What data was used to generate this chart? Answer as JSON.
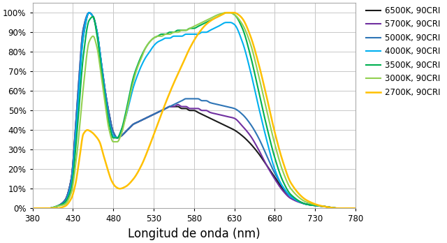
{
  "title": "",
  "xlabel": "Longitud de onda (nm)",
  "ylabel": "",
  "xlim": [
    380,
    780
  ],
  "ylim": [
    0,
    1.05
  ],
  "xticks": [
    380,
    430,
    480,
    530,
    580,
    630,
    680,
    730,
    780
  ],
  "yticks": [
    0.0,
    0.1,
    0.2,
    0.3,
    0.4,
    0.5,
    0.6,
    0.7,
    0.8,
    0.9,
    1.0
  ],
  "series": [
    {
      "label": "6500K, 90CRI",
      "color": "#1a1a1a",
      "linewidth": 1.5,
      "knots": [
        380,
        390,
        400,
        410,
        420,
        428,
        435,
        443,
        450,
        455,
        460,
        465,
        470,
        475,
        480,
        485,
        490,
        495,
        500,
        505,
        510,
        515,
        520,
        525,
        530,
        535,
        540,
        545,
        550,
        555,
        560,
        565,
        570,
        575,
        580,
        585,
        590,
        595,
        600,
        610,
        620,
        630,
        640,
        650,
        660,
        670,
        680,
        690,
        700,
        720,
        740,
        760,
        780
      ],
      "values": [
        0.0,
        0.0,
        0.0,
        0.01,
        0.04,
        0.15,
        0.5,
        0.88,
        1.0,
        0.98,
        0.9,
        0.75,
        0.6,
        0.48,
        0.39,
        0.36,
        0.37,
        0.39,
        0.41,
        0.43,
        0.44,
        0.45,
        0.46,
        0.47,
        0.48,
        0.49,
        0.5,
        0.51,
        0.52,
        0.52,
        0.52,
        0.51,
        0.51,
        0.5,
        0.5,
        0.49,
        0.48,
        0.47,
        0.46,
        0.44,
        0.42,
        0.4,
        0.37,
        0.33,
        0.28,
        0.22,
        0.16,
        0.1,
        0.06,
        0.02,
        0.01,
        0.0,
        0.0
      ]
    },
    {
      "label": "5700K, 90CRI",
      "color": "#7030a0",
      "linewidth": 1.5,
      "knots": [
        380,
        390,
        400,
        410,
        420,
        428,
        435,
        443,
        450,
        455,
        460,
        465,
        470,
        475,
        480,
        485,
        490,
        495,
        500,
        505,
        510,
        515,
        520,
        525,
        530,
        535,
        540,
        545,
        550,
        555,
        560,
        565,
        570,
        575,
        580,
        585,
        590,
        595,
        600,
        610,
        620,
        630,
        640,
        650,
        660,
        670,
        680,
        690,
        700,
        720,
        740,
        760,
        780
      ],
      "values": [
        0.0,
        0.0,
        0.0,
        0.01,
        0.04,
        0.15,
        0.52,
        0.92,
        1.0,
        0.98,
        0.9,
        0.75,
        0.6,
        0.48,
        0.39,
        0.36,
        0.37,
        0.39,
        0.41,
        0.43,
        0.44,
        0.45,
        0.46,
        0.47,
        0.48,
        0.49,
        0.5,
        0.51,
        0.52,
        0.52,
        0.53,
        0.52,
        0.52,
        0.51,
        0.51,
        0.51,
        0.5,
        0.5,
        0.49,
        0.48,
        0.47,
        0.46,
        0.42,
        0.37,
        0.3,
        0.22,
        0.15,
        0.09,
        0.05,
        0.02,
        0.01,
        0.0,
        0.0
      ]
    },
    {
      "label": "5000K, 90CRI",
      "color": "#2e75b6",
      "linewidth": 1.5,
      "knots": [
        380,
        390,
        400,
        410,
        420,
        428,
        435,
        443,
        450,
        455,
        460,
        465,
        470,
        475,
        480,
        485,
        490,
        495,
        500,
        505,
        510,
        515,
        520,
        525,
        530,
        535,
        540,
        545,
        550,
        555,
        560,
        565,
        570,
        575,
        580,
        585,
        590,
        595,
        600,
        610,
        620,
        630,
        640,
        650,
        660,
        670,
        680,
        690,
        700,
        720,
        740,
        760,
        780
      ],
      "values": [
        0.0,
        0.0,
        0.0,
        0.01,
        0.04,
        0.15,
        0.52,
        0.92,
        1.0,
        0.98,
        0.9,
        0.75,
        0.6,
        0.48,
        0.39,
        0.36,
        0.37,
        0.39,
        0.41,
        0.43,
        0.44,
        0.45,
        0.46,
        0.47,
        0.48,
        0.49,
        0.5,
        0.51,
        0.52,
        0.53,
        0.54,
        0.55,
        0.56,
        0.56,
        0.56,
        0.56,
        0.55,
        0.55,
        0.54,
        0.53,
        0.52,
        0.51,
        0.48,
        0.43,
        0.36,
        0.27,
        0.18,
        0.11,
        0.06,
        0.02,
        0.01,
        0.0,
        0.0
      ]
    },
    {
      "label": "4000K, 90CRI",
      "color": "#00b0f0",
      "linewidth": 1.5,
      "knots": [
        380,
        390,
        400,
        410,
        420,
        428,
        435,
        443,
        450,
        455,
        460,
        465,
        470,
        475,
        480,
        485,
        490,
        495,
        500,
        505,
        510,
        515,
        520,
        525,
        530,
        535,
        540,
        545,
        550,
        555,
        560,
        565,
        570,
        575,
        580,
        585,
        590,
        595,
        600,
        610,
        620,
        625,
        630,
        640,
        650,
        660,
        670,
        680,
        690,
        700,
        720,
        740,
        760,
        780
      ],
      "values": [
        0.0,
        0.0,
        0.0,
        0.01,
        0.03,
        0.12,
        0.45,
        0.88,
        1.0,
        0.98,
        0.9,
        0.75,
        0.58,
        0.44,
        0.37,
        0.36,
        0.4,
        0.46,
        0.54,
        0.62,
        0.68,
        0.73,
        0.77,
        0.8,
        0.83,
        0.85,
        0.86,
        0.87,
        0.87,
        0.88,
        0.88,
        0.88,
        0.89,
        0.89,
        0.89,
        0.89,
        0.9,
        0.9,
        0.91,
        0.93,
        0.95,
        0.95,
        0.94,
        0.85,
        0.7,
        0.52,
        0.35,
        0.2,
        0.11,
        0.06,
        0.02,
        0.01,
        0.0,
        0.0
      ]
    },
    {
      "label": "3500K, 90CRI",
      "color": "#00b050",
      "linewidth": 1.5,
      "knots": [
        380,
        390,
        400,
        410,
        420,
        428,
        435,
        443,
        450,
        455,
        460,
        465,
        470,
        475,
        480,
        485,
        490,
        495,
        500,
        505,
        510,
        515,
        520,
        525,
        530,
        535,
        540,
        545,
        550,
        555,
        560,
        565,
        570,
        575,
        580,
        585,
        590,
        595,
        600,
        610,
        620,
        625,
        630,
        640,
        650,
        660,
        670,
        680,
        690,
        700,
        720,
        740,
        760,
        780
      ],
      "values": [
        0.0,
        0.0,
        0.0,
        0.01,
        0.03,
        0.1,
        0.38,
        0.78,
        0.96,
        0.98,
        0.88,
        0.72,
        0.56,
        0.43,
        0.36,
        0.36,
        0.4,
        0.48,
        0.58,
        0.67,
        0.73,
        0.78,
        0.82,
        0.85,
        0.87,
        0.88,
        0.89,
        0.89,
        0.9,
        0.9,
        0.91,
        0.91,
        0.91,
        0.92,
        0.92,
        0.93,
        0.94,
        0.95,
        0.96,
        0.98,
        1.0,
        1.0,
        0.99,
        0.92,
        0.78,
        0.6,
        0.42,
        0.26,
        0.14,
        0.07,
        0.02,
        0.01,
        0.0,
        0.0
      ]
    },
    {
      "label": "3000K, 90CRI",
      "color": "#92d050",
      "linewidth": 1.5,
      "knots": [
        380,
        390,
        400,
        410,
        420,
        428,
        435,
        443,
        450,
        455,
        460,
        465,
        470,
        475,
        480,
        485,
        490,
        495,
        500,
        505,
        510,
        515,
        520,
        525,
        530,
        535,
        540,
        545,
        550,
        555,
        560,
        565,
        570,
        575,
        580,
        585,
        590,
        595,
        600,
        610,
        620,
        625,
        630,
        640,
        650,
        660,
        670,
        680,
        690,
        700,
        720,
        740,
        760,
        780
      ],
      "values": [
        0.0,
        0.0,
        0.0,
        0.01,
        0.02,
        0.08,
        0.28,
        0.62,
        0.85,
        0.88,
        0.82,
        0.68,
        0.53,
        0.4,
        0.34,
        0.34,
        0.38,
        0.46,
        0.56,
        0.65,
        0.72,
        0.77,
        0.82,
        0.85,
        0.87,
        0.88,
        0.88,
        0.89,
        0.89,
        0.9,
        0.9,
        0.91,
        0.91,
        0.92,
        0.93,
        0.94,
        0.95,
        0.96,
        0.97,
        0.99,
        1.0,
        1.0,
        0.99,
        0.94,
        0.84,
        0.68,
        0.5,
        0.33,
        0.19,
        0.1,
        0.03,
        0.01,
        0.0,
        0.0
      ]
    },
    {
      "label": "2700K, 90CRI",
      "color": "#ffc000",
      "linewidth": 1.8,
      "knots": [
        380,
        390,
        400,
        410,
        420,
        428,
        433,
        438,
        443,
        448,
        453,
        458,
        463,
        468,
        473,
        478,
        483,
        488,
        495,
        505,
        515,
        525,
        535,
        545,
        555,
        565,
        575,
        585,
        595,
        605,
        615,
        620,
        625,
        630,
        635,
        640,
        650,
        660,
        670,
        680,
        690,
        700,
        720,
        740,
        760,
        780
      ],
      "values": [
        0.0,
        0.0,
        0.0,
        0.0,
        0.01,
        0.05,
        0.12,
        0.25,
        0.38,
        0.4,
        0.39,
        0.37,
        0.34,
        0.27,
        0.2,
        0.14,
        0.11,
        0.1,
        0.11,
        0.15,
        0.22,
        0.32,
        0.43,
        0.54,
        0.64,
        0.73,
        0.82,
        0.89,
        0.94,
        0.97,
        0.99,
        1.0,
        1.0,
        1.0,
        0.99,
        0.97,
        0.88,
        0.74,
        0.57,
        0.39,
        0.24,
        0.13,
        0.04,
        0.01,
        0.0,
        0.0
      ]
    }
  ],
  "background_color": "#ffffff",
  "grid_color": "#c8c8c8",
  "legend_fontsize": 8.5,
  "xlabel_fontsize": 12,
  "tick_fontsize": 8.5
}
